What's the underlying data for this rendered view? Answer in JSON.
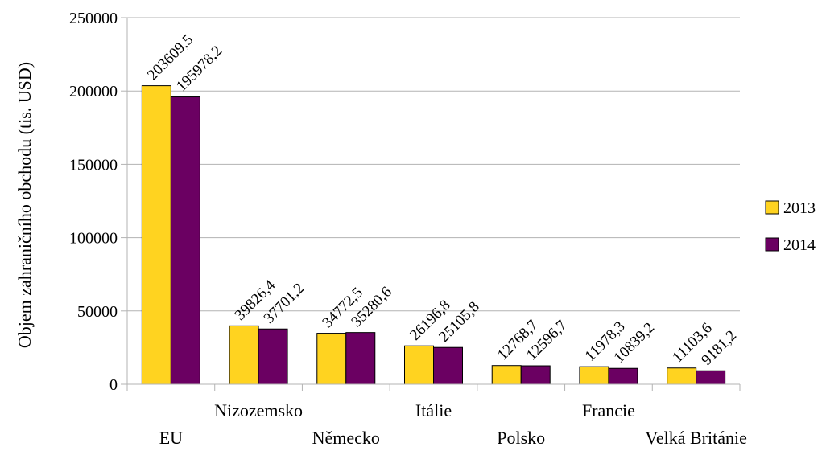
{
  "chart_data": {
    "type": "bar",
    "title": "",
    "xlabel": "",
    "ylabel": "Objem zahraničního obchodu (tis. USD)",
    "ylim": [
      0,
      250000
    ],
    "yticks": [
      0,
      50000,
      100000,
      150000,
      200000,
      250000
    ],
    "ytick_labels": [
      "0",
      "50000",
      "100000",
      "150000",
      "200000",
      "250000"
    ],
    "grid": true,
    "legend_position": "right",
    "categories": [
      "EU",
      "Nizozemsko",
      "Německo",
      "Itálie",
      "Polsko",
      "Francie",
      "Velká Británie"
    ],
    "series": [
      {
        "name": "2013",
        "color": "#ffd320",
        "values": [
          203609.5,
          39826.4,
          34772.5,
          26196.8,
          12768.7,
          11978.3,
          11103.6
        ],
        "labels": [
          "203609,5",
          "39826,4",
          "34772,5",
          "26196,8",
          "12768,7",
          "11978,3",
          "11103,6"
        ]
      },
      {
        "name": "2014",
        "color": "#6b0062",
        "values": [
          195978.2,
          37701.2,
          35280.6,
          25105.8,
          12596.7,
          10839.2,
          9181.2
        ],
        "labels": [
          "195978,2",
          "37701,2",
          "35280,6",
          "25105,8",
          "12596,7",
          "10839,2",
          "9181,2"
        ]
      }
    ]
  }
}
